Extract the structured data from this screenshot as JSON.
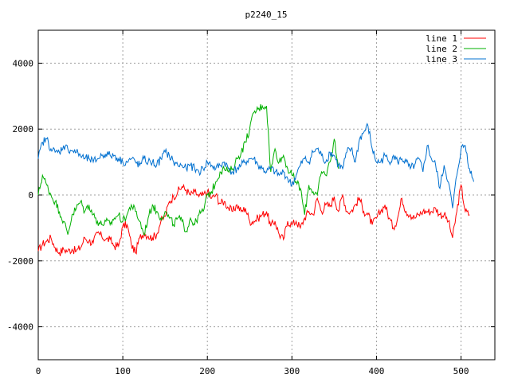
{
  "chart_data": {
    "type": "line",
    "title": "p2240_15",
    "xlabel": "",
    "ylabel": "",
    "xlim": [
      0,
      540
    ],
    "ylim": [
      -5000,
      5000
    ],
    "xticks": [
      0,
      100,
      200,
      300,
      400,
      500
    ],
    "yticks": [
      -4000,
      -2000,
      0,
      2000,
      4000
    ],
    "grid": true,
    "legend_position": "top-right",
    "x_step": 20,
    "series": [
      {
        "name": "line 1",
        "color": "#ff0000",
        "values": [
          -1700,
          -1500,
          -1400,
          -1300,
          -1600,
          -1750,
          -1650,
          -1700,
          -1650,
          -1700,
          -1600,
          -1300,
          -1400,
          -1450,
          -1150,
          -1250,
          -1350,
          -1350,
          -1550,
          -1550,
          -950,
          -900,
          -1500,
          -1750,
          -1300,
          -1150,
          -1250,
          -1300,
          -1200,
          -800,
          -650,
          -200,
          -50,
          100,
          250,
          150,
          0,
          100,
          -50,
          0,
          100,
          -100,
          0,
          -250,
          -200,
          -400,
          -500,
          -300,
          -500,
          -400,
          -800,
          -800,
          -700,
          -600,
          -500,
          -950,
          -800,
          -1200,
          -1350,
          -800,
          -900,
          -800,
          -1000,
          -700,
          -500,
          -600,
          -100,
          -500,
          -300,
          -350,
          -50,
          -500,
          0,
          -500,
          -500,
          -300,
          -100,
          -500,
          -600,
          -900,
          -700,
          -500,
          -300,
          -700,
          -1000,
          -700,
          -100,
          -500,
          -600,
          -700,
          -600,
          -500,
          -500,
          -500,
          -400,
          -600,
          -600,
          -800,
          -1300,
          -500,
          300,
          -500,
          -600
        ]
      },
      {
        "name": "line 2",
        "color": "#00b000",
        "values": [
          0,
          600,
          300,
          0,
          -200,
          -500,
          -800,
          -1200,
          -600,
          -400,
          -200,
          -500,
          -300,
          -600,
          -800,
          -900,
          -800,
          -900,
          -700,
          -600,
          -800,
          -600,
          -300,
          -500,
          -800,
          -1200,
          -700,
          -300,
          -500,
          -700,
          -500,
          -700,
          -900,
          -700,
          -800,
          -1100,
          -700,
          -900,
          -600,
          -500,
          0,
          100,
          400,
          700,
          800,
          700,
          800,
          1100,
          1300,
          1600,
          2000,
          2500,
          2600,
          2700,
          2700,
          700,
          1400,
          1000,
          1200,
          800,
          600,
          400,
          200,
          -600,
          300,
          100,
          0,
          700,
          600,
          1000,
          1700,
          800
        ]
      },
      {
        "name": "line 3",
        "color": "#0070d0",
        "values": [
          1100,
          1600,
          1700,
          1400,
          1300,
          1300,
          1500,
          1400,
          1350,
          1300,
          1200,
          1100,
          1100,
          1000,
          1100,
          1200,
          1250,
          1200,
          1200,
          1100,
          1000,
          1000,
          1100,
          1000,
          900,
          1100,
          1000,
          1000,
          900,
          1100,
          1300,
          1200,
          1000,
          900,
          900,
          800,
          900,
          800,
          700,
          800,
          1000,
          900,
          800,
          900,
          1000,
          800,
          700,
          800,
          900,
          1000,
          1100,
          1100,
          900,
          800,
          700,
          800,
          700,
          600,
          700,
          500,
          300,
          600,
          900,
          1100,
          1000,
          1300,
          1400,
          1200,
          1000,
          1300,
          1200,
          900,
          800,
          1300,
          1400,
          1000,
          1700,
          1900,
          2100,
          1400,
          1000,
          1000,
          1200,
          1000,
          1200,
          1000,
          1100,
          1000,
          800,
          900,
          1100,
          700,
          1500,
          1100,
          900,
          200,
          900,
          400,
          -400,
          600,
          1400,
          1500,
          800,
          400
        ]
      }
    ]
  }
}
